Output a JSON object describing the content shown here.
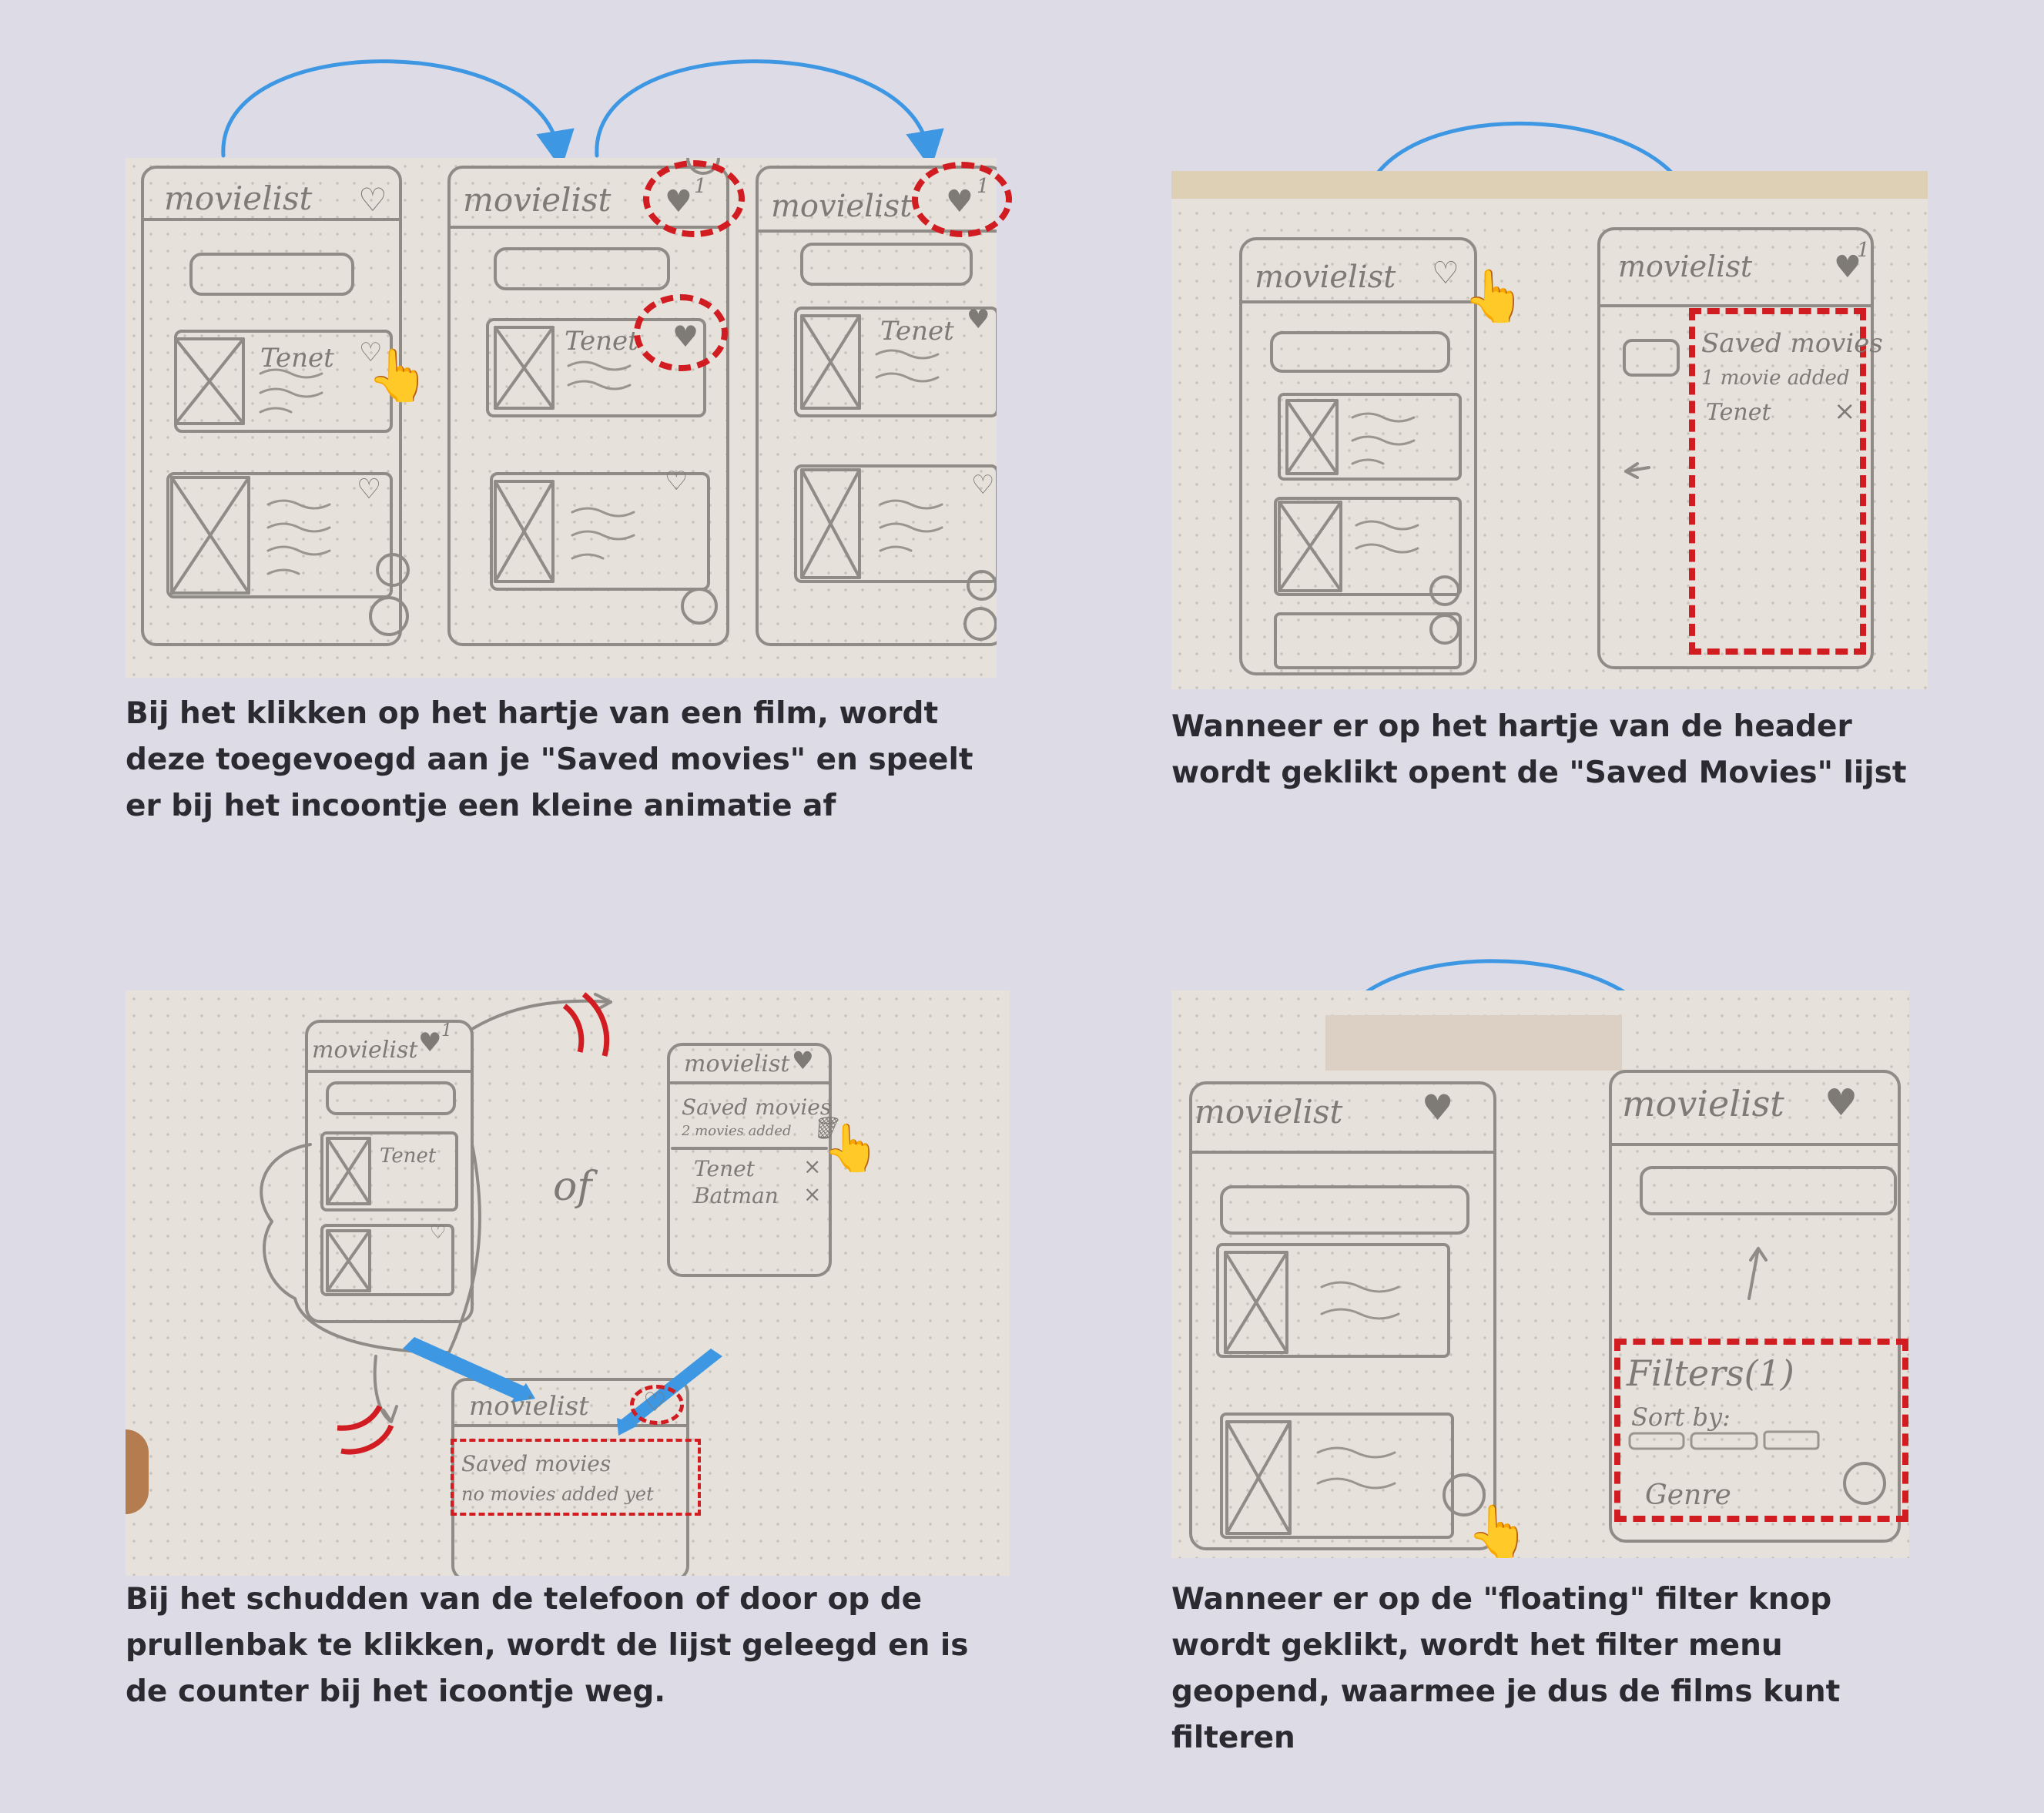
{
  "colors": {
    "background": "#dddbe6",
    "caption": "#2a2a30",
    "arrow": "#3d97e3",
    "highlight": "#d11c22"
  },
  "captions": {
    "step1": "Bij het klikken op het hartje van een film, wordt deze toegevoegd aan je \"Saved movies\" en speelt er bij het incoontje een kleine animatie af",
    "step2": "Wanneer er op het hartje van de header wordt geklikt opent de \"Saved Movies\" lijst",
    "step3": "Bij het schudden van de telefoon of door op de prullenbak te klikken, wordt de lijst geleegd en is de counter bij het icoontje weg.",
    "step4": "Wanneer er op de \"floating\" filter knop wordt geklikt, wordt het filter menu geopend, waarmee je dus de films kunt filteren"
  },
  "sketch": {
    "app_title": "movielist",
    "movie_title": "Tenet",
    "movie_title_2": "Batman",
    "counter_one": "1",
    "saved_title": "Saved movies",
    "saved_count_one": "1 movie added",
    "saved_count_two": "2 movies added",
    "saved_empty": "no movies added yet",
    "remove_mark": "×",
    "or_word": "of",
    "filters_title": "Filters(1)",
    "sort_by": "Sort by:",
    "genre": "Genre"
  },
  "icons": {
    "heart": "heart-icon",
    "pointer": "pointing-hand-icon",
    "filter": "filter-icon",
    "scroll_up": "arrow-up-icon",
    "trash": "trash-icon"
  }
}
